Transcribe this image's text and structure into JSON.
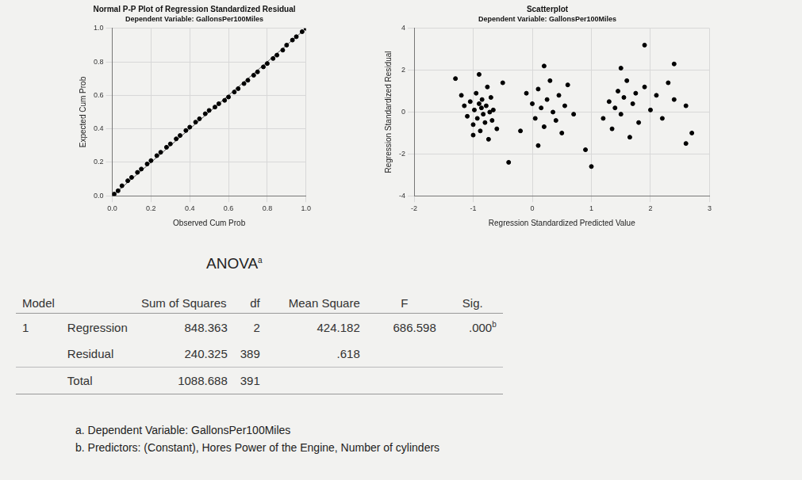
{
  "chart_data": [
    {
      "type": "scatter",
      "title": "Normal P-P Plot of Regression Standardized Residual",
      "subtitle": "Dependent Variable: GallonsPer100Miles",
      "x_label": "Observed Cum Prob",
      "y_label": "Expected Cum Prob",
      "x": [
        0.01,
        0.03,
        0.05,
        0.08,
        0.1,
        0.13,
        0.15,
        0.18,
        0.2,
        0.23,
        0.25,
        0.28,
        0.3,
        0.33,
        0.35,
        0.38,
        0.4,
        0.43,
        0.45,
        0.48,
        0.5,
        0.53,
        0.55,
        0.58,
        0.6,
        0.63,
        0.65,
        0.68,
        0.7,
        0.73,
        0.75,
        0.78,
        0.8,
        0.83,
        0.85,
        0.88,
        0.9,
        0.93,
        0.95,
        0.98,
        1.0
      ],
      "y": [
        0.01,
        0.03,
        0.06,
        0.09,
        0.11,
        0.14,
        0.16,
        0.19,
        0.21,
        0.24,
        0.26,
        0.29,
        0.31,
        0.34,
        0.36,
        0.39,
        0.41,
        0.44,
        0.46,
        0.49,
        0.51,
        0.53,
        0.55,
        0.57,
        0.59,
        0.62,
        0.64,
        0.67,
        0.69,
        0.72,
        0.74,
        0.77,
        0.79,
        0.82,
        0.84,
        0.87,
        0.9,
        0.93,
        0.95,
        0.98,
        1.0
      ],
      "reference_line": {
        "x": [
          0,
          1
        ],
        "y": [
          0,
          1
        ]
      },
      "color": "#000000",
      "marker": "circle",
      "xlim": [
        0,
        1
      ],
      "ylim": [
        0,
        1
      ],
      "xticks": [
        {
          "value": 0,
          "label": "0.0"
        },
        {
          "value": 0.2,
          "label": "0.2"
        },
        {
          "value": 0.4,
          "label": "0.4"
        },
        {
          "value": 0.6,
          "label": "0.6"
        },
        {
          "value": 0.8,
          "label": "0.8"
        },
        {
          "value": 1,
          "label": "1.0"
        }
      ],
      "yticks": [
        {
          "value": 0,
          "label": "0.0"
        },
        {
          "value": 0.2,
          "label": "0.2"
        },
        {
          "value": 0.4,
          "label": "0.4"
        },
        {
          "value": 0.6,
          "label": "0.6"
        },
        {
          "value": 0.8,
          "label": "0.8"
        },
        {
          "value": 1,
          "label": "1.0"
        }
      ],
      "grid": true
    },
    {
      "type": "scatter",
      "title": "Scatterplot",
      "subtitle": "Dependent Variable: GallonsPer100Miles",
      "x_label": "Regression Standardized Predicted Value",
      "y_label": "Regression Standardized Residual",
      "x": [
        -1.2,
        -1.15,
        -1.1,
        -1.05,
        -1.0,
        -0.98,
        -0.95,
        -0.93,
        -0.9,
        -0.88,
        -0.86,
        -0.85,
        -0.83,
        -0.8,
        -0.78,
        -0.76,
        -0.74,
        -0.72,
        -0.7,
        -0.68,
        -0.66,
        -1.3,
        -0.9,
        -1.0,
        -0.6,
        -0.5,
        -0.4,
        -0.1,
        0.0,
        0.05,
        0.1,
        0.15,
        0.2,
        0.25,
        0.3,
        0.35,
        0.4,
        0.45,
        0.5,
        0.55,
        0.6,
        0.2,
        0.7,
        0.1,
        -0.2,
        0.9,
        1.2,
        1.3,
        1.35,
        1.4,
        1.45,
        1.5,
        1.55,
        1.6,
        1.65,
        1.7,
        1.75,
        1.8,
        1.9,
        2.0,
        2.1,
        2.2,
        2.3,
        2.4,
        2.6,
        2.7,
        1.5,
        2.4,
        2.6,
        1.9,
        1.0
      ],
      "y": [
        0.8,
        0.3,
        -0.2,
        0.5,
        -0.6,
        0.1,
        0.9,
        -0.3,
        0.4,
        -0.9,
        0.2,
        0.6,
        -0.1,
        -0.5,
        0.3,
        1.2,
        -1.3,
        0.0,
        0.7,
        -0.4,
        0.1,
        1.6,
        1.8,
        -1.1,
        -0.8,
        1.4,
        -2.4,
        0.9,
        0.4,
        -0.3,
        1.1,
        0.2,
        -0.7,
        0.6,
        1.5,
        0.0,
        -0.4,
        0.8,
        -1.0,
        0.3,
        1.3,
        2.2,
        -0.1,
        -1.6,
        -0.9,
        -1.8,
        -0.3,
        0.5,
        -0.8,
        0.2,
        1.0,
        -0.1,
        0.7,
        1.5,
        -1.2,
        0.4,
        0.9,
        -0.5,
        1.2,
        0.1,
        0.8,
        -0.3,
        1.4,
        0.6,
        0.3,
        -1.0,
        2.1,
        2.3,
        -1.5,
        3.2,
        -2.6
      ],
      "color": "#000000",
      "marker": "circle",
      "xlim": [
        -2,
        3
      ],
      "ylim": [
        -4,
        4
      ],
      "xticks": [
        -2,
        -1,
        0,
        1,
        2,
        3
      ],
      "yticks": [
        -4,
        -2,
        0,
        2,
        4
      ],
      "grid": true
    }
  ],
  "table": {
    "title": "ANOVA",
    "title_note": "a",
    "header": [
      "Model",
      "",
      "Sum of Squares",
      "df",
      "Mean Square",
      "F",
      "Sig."
    ],
    "rows": [
      [
        "1",
        "Regression",
        "848.363",
        "2",
        "424.182",
        "686.598",
        {
          "text": ".000",
          "note": "b"
        }
      ],
      [
        "",
        "Residual",
        "240.325",
        "389",
        ".618",
        "",
        ""
      ],
      [
        "",
        "Total",
        "1088.688",
        "391",
        "",
        "",
        ""
      ]
    ],
    "footnotes": [
      "a. Dependent Variable: GallonsPer100Miles",
      "b. Predictors: (Constant), Hores Power of the Engine, Number of cylinders"
    ]
  }
}
